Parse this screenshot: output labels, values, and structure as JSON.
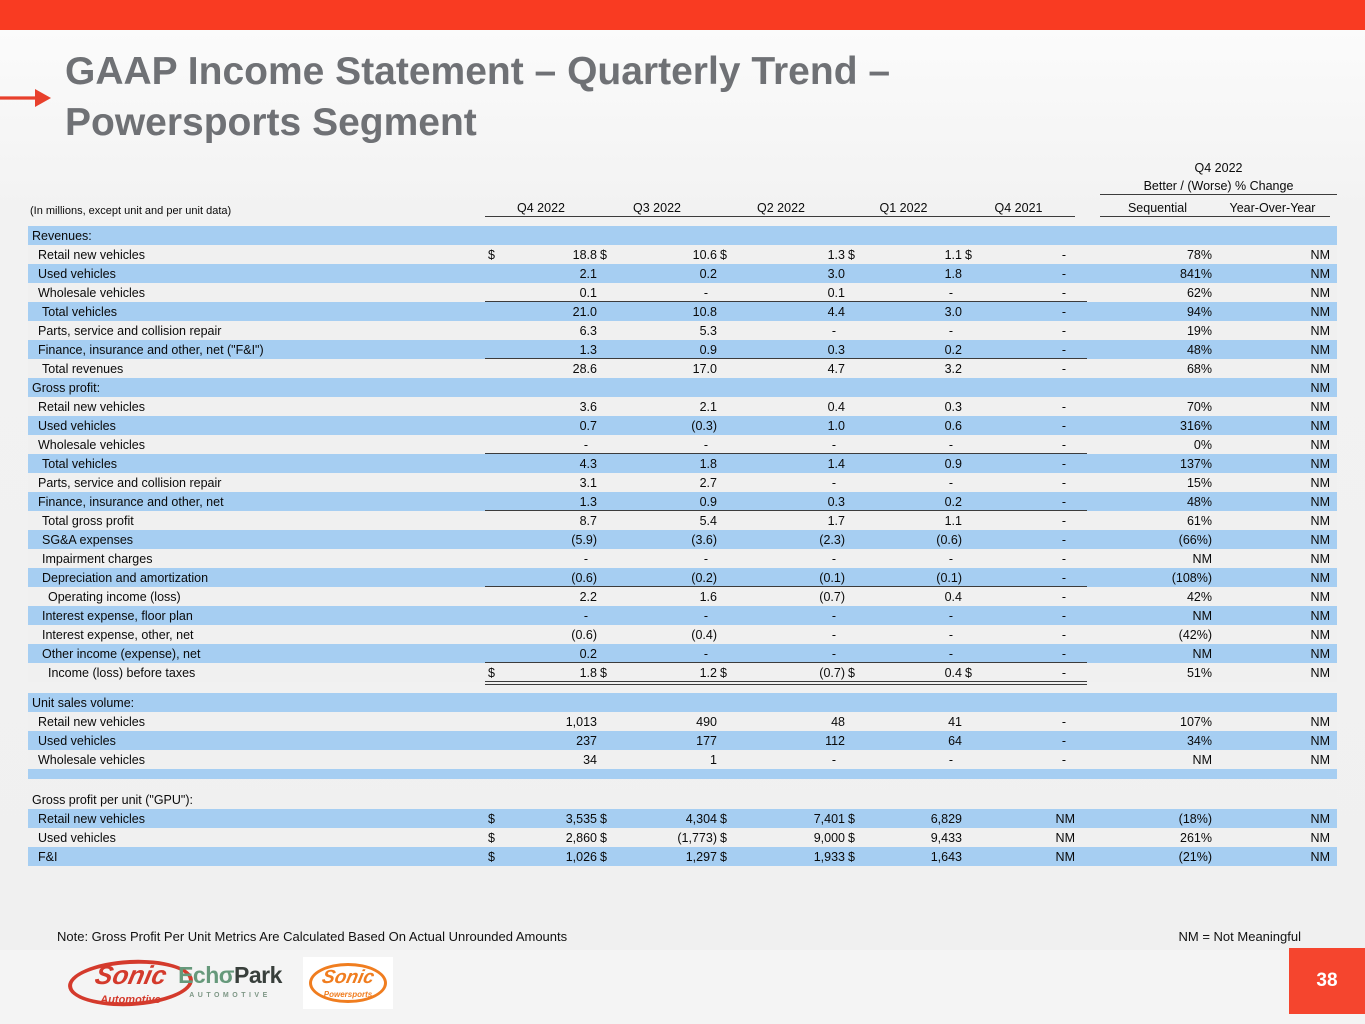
{
  "slide": {
    "title_line1": "GAAP Income Statement – Quarterly Trend –",
    "title_line2": "Powersports Segment",
    "note": "Note: Gross Profit Per Unit Metrics Are Calculated Based On Actual Unrounded Amounts",
    "nm_legend": "NM = Not Meaningful",
    "page_number": "38"
  },
  "colors": {
    "accent_red": "#F93B22",
    "page_box_red": "#F5452E",
    "row_blue": "#A6CEF2",
    "row_gray": "#F0F0F0",
    "title_gray": "#6F7175",
    "sonic_red": "#D43A2C",
    "echopark_green": "#66997B",
    "powersports_orange": "#F07D1F"
  },
  "table": {
    "units_note": "(In millions, except unit and per unit data)",
    "change_header_line1": "Q4 2022",
    "change_header_line2": "Better / (Worse) % Change",
    "period_headers": [
      "Q4 2022",
      "Q3 2022",
      "Q2 2022",
      "Q1 2022",
      "Q4 2021"
    ],
    "change_headers": [
      "Sequential",
      "Year-Over-Year"
    ],
    "rows": [
      {
        "label": "Revenues:",
        "section": true
      },
      {
        "label": "Retail new vehicles",
        "indent": 1,
        "dollars": true,
        "v": [
          "18.8",
          "10.6",
          "1.3",
          "1.1",
          "-"
        ],
        "seq": "78%",
        "yoy": "NM"
      },
      {
        "label": "Used vehicles",
        "indent": 1,
        "v": [
          "2.1",
          "0.2",
          "3.0",
          "1.8",
          "-"
        ],
        "seq": "841%",
        "yoy": "NM"
      },
      {
        "label": "Wholesale vehicles",
        "indent": 1,
        "v": [
          "0.1",
          "-",
          "0.1",
          "-",
          "-"
        ],
        "seq": "62%",
        "yoy": "NM",
        "rule": "single"
      },
      {
        "label": "Total vehicles",
        "indent": 2,
        "v": [
          "21.0",
          "10.8",
          "4.4",
          "3.0",
          "-"
        ],
        "seq": "94%",
        "yoy": "NM"
      },
      {
        "label": "Parts, service and collision repair",
        "indent": 1,
        "v": [
          "6.3",
          "5.3",
          "-",
          "-",
          "-"
        ],
        "seq": "19%",
        "yoy": "NM"
      },
      {
        "label": "Finance, insurance and other, net (\"F&I\")",
        "indent": 1,
        "v": [
          "1.3",
          "0.9",
          "0.3",
          "0.2",
          "-"
        ],
        "seq": "48%",
        "yoy": "NM",
        "rule": "single"
      },
      {
        "label": "Total revenues",
        "indent": 2,
        "v": [
          "28.6",
          "17.0",
          "4.7",
          "3.2",
          "-"
        ],
        "seq": "68%",
        "yoy": "NM"
      },
      {
        "label": "Gross profit:",
        "section": true,
        "yoy": "NM"
      },
      {
        "label": "Retail new vehicles",
        "indent": 1,
        "v": [
          "3.6",
          "2.1",
          "0.4",
          "0.3",
          "-"
        ],
        "seq": "70%",
        "yoy": "NM"
      },
      {
        "label": "Used vehicles",
        "indent": 1,
        "v": [
          "0.7",
          "(0.3)",
          "1.0",
          "0.6",
          "-"
        ],
        "seq": "316%",
        "yoy": "NM"
      },
      {
        "label": "Wholesale vehicles",
        "indent": 1,
        "v": [
          "-",
          "-",
          "-",
          "-",
          "-"
        ],
        "seq": "0%",
        "yoy": "NM",
        "rule": "single"
      },
      {
        "label": "Total vehicles",
        "indent": 2,
        "v": [
          "4.3",
          "1.8",
          "1.4",
          "0.9",
          "-"
        ],
        "seq": "137%",
        "yoy": "NM"
      },
      {
        "label": "Parts, service and collision repair",
        "indent": 1,
        "v": [
          "3.1",
          "2.7",
          "-",
          "-",
          "-"
        ],
        "seq": "15%",
        "yoy": "NM"
      },
      {
        "label": "Finance, insurance and other, net",
        "indent": 1,
        "v": [
          "1.3",
          "0.9",
          "0.3",
          "0.2",
          "-"
        ],
        "seq": "48%",
        "yoy": "NM",
        "rule": "single"
      },
      {
        "label": "Total gross profit",
        "indent": 2,
        "v": [
          "8.7",
          "5.4",
          "1.7",
          "1.1",
          "-"
        ],
        "seq": "61%",
        "yoy": "NM"
      },
      {
        "label": "SG&A expenses",
        "indent": 2,
        "v": [
          "(5.9)",
          "(3.6)",
          "(2.3)",
          "(0.6)",
          "-"
        ],
        "seq": "(66%)",
        "yoy": "NM"
      },
      {
        "label": "Impairment charges",
        "indent": 2,
        "v": [
          "-",
          "-",
          "-",
          "-",
          "-"
        ],
        "seq": "NM",
        "yoy": "NM"
      },
      {
        "label": "Depreciation and amortization",
        "indent": 2,
        "v": [
          "(0.6)",
          "(0.2)",
          "(0.1)",
          "(0.1)",
          "-"
        ],
        "seq": "(108%)",
        "yoy": "NM",
        "rule": "single"
      },
      {
        "label": "Operating income (loss)",
        "indent": 3,
        "v": [
          "2.2",
          "1.6",
          "(0.7)",
          "0.4",
          "-"
        ],
        "seq": "42%",
        "yoy": "NM"
      },
      {
        "label": "Interest expense, floor plan",
        "indent": 2,
        "v": [
          "-",
          "-",
          "-",
          "-",
          "-"
        ],
        "seq": "NM",
        "yoy": "NM"
      },
      {
        "label": "Interest expense, other, net",
        "indent": 2,
        "v": [
          "(0.6)",
          "(0.4)",
          "-",
          "-",
          "-"
        ],
        "seq": "(42%)",
        "yoy": "NM"
      },
      {
        "label": "Other income (expense), net",
        "indent": 2,
        "v": [
          "0.2",
          "-",
          "-",
          "-",
          "-"
        ],
        "seq": "NM",
        "yoy": "NM",
        "rule": "single"
      },
      {
        "label": "Income (loss) before taxes",
        "indent": 3,
        "dollars": true,
        "v": [
          "1.8",
          "1.2",
          "(0.7)",
          "0.4",
          "-"
        ],
        "seq": "51%",
        "yoy": "NM",
        "rule": "double"
      },
      {
        "spacer": true
      },
      {
        "label": "Unit sales volume:",
        "section": true
      },
      {
        "label": "Retail new vehicles",
        "indent": 1,
        "v": [
          "1,013",
          "490",
          "48",
          "41",
          "-"
        ],
        "seq": "107%",
        "yoy": "NM"
      },
      {
        "label": "Used vehicles",
        "indent": 1,
        "v": [
          "237",
          "177",
          "112",
          "64",
          "-"
        ],
        "seq": "34%",
        "yoy": "NM"
      },
      {
        "label": "Wholesale vehicles",
        "indent": 1,
        "v": [
          "34",
          "1",
          "-",
          "-",
          "-"
        ],
        "seq": "NM",
        "yoy": "NM"
      },
      {
        "blank": true
      },
      {
        "spacer": true
      },
      {
        "label": "Gross profit per unit (\"GPU\"):",
        "section": true
      },
      {
        "label": "Retail new vehicles",
        "indent": 1,
        "dollars": true,
        "v": [
          "3,535",
          "4,304",
          "7,401",
          "6,829",
          "NM"
        ],
        "seq": "(18%)",
        "yoy": "NM"
      },
      {
        "label": "Used vehicles",
        "indent": 1,
        "dollars": true,
        "v": [
          "2,860",
          "(1,773)",
          "9,000",
          "9,433",
          "NM"
        ],
        "seq": "261%",
        "yoy": "NM"
      },
      {
        "label": "F&I",
        "indent": 1,
        "dollars": true,
        "v": [
          "1,026",
          "1,297",
          "1,933",
          "1,643",
          "NM"
        ],
        "seq": "(21%)",
        "yoy": "NM"
      }
    ]
  },
  "logos": {
    "sonic_automotive": {
      "name": "Sonic",
      "subtitle": "Automotive"
    },
    "echopark": {
      "part1": "Ech",
      "stylized_o": "σ",
      "part2": "Park",
      "subtitle": "AUTOMOTIVE"
    },
    "sonic_powersports": {
      "name": "Sonic",
      "subtitle": "Powersports"
    }
  }
}
